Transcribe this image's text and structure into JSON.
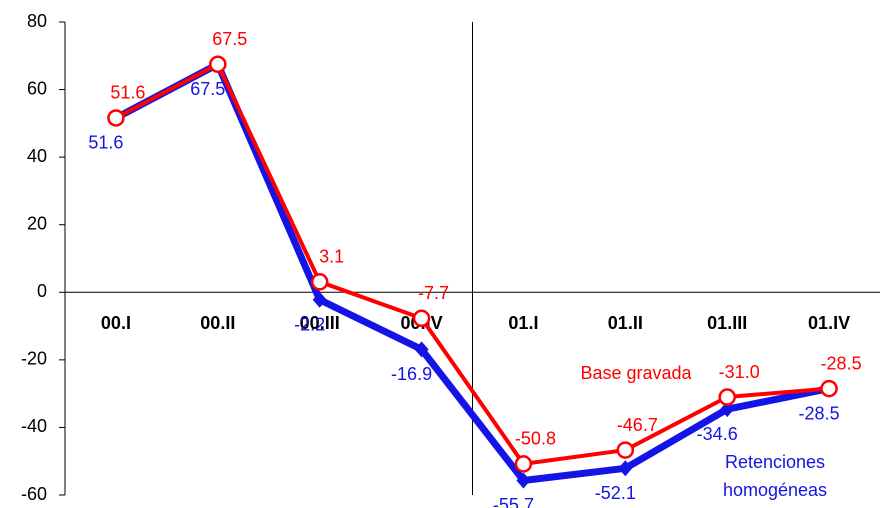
{
  "chart_data": {
    "type": "line",
    "categories": [
      "00.I",
      "00.II",
      "00.III",
      "00.IV",
      "01.I",
      "01.II",
      "01.III",
      "01.IV"
    ],
    "series": [
      {
        "name": "Base gravada",
        "color": "#ff0000",
        "values": [
          51.6,
          67.5,
          3.1,
          -7.7,
          -50.8,
          -46.7,
          -31.0,
          -28.5
        ],
        "value_labels": [
          "51.6",
          "67.5",
          "3.1",
          "-7.7",
          "-50.8",
          "-46.7",
          "-31.0",
          "-28.5"
        ]
      },
      {
        "name": "Retenciones homogéneas",
        "color": "#1414e6",
        "values": [
          51.6,
          67.5,
          -2.2,
          -16.9,
          -55.7,
          -52.1,
          -34.6,
          -28.5
        ],
        "value_labels": [
          "51.6",
          "67.5",
          "-2.2",
          "-16.9",
          "-55.7",
          "-52.1",
          "-34.6",
          "-28.5"
        ]
      }
    ],
    "ylim": [
      -60,
      80
    ],
    "yticks": [
      -60,
      -40,
      -20,
      0,
      20,
      40,
      60,
      80
    ],
    "grid": false
  }
}
